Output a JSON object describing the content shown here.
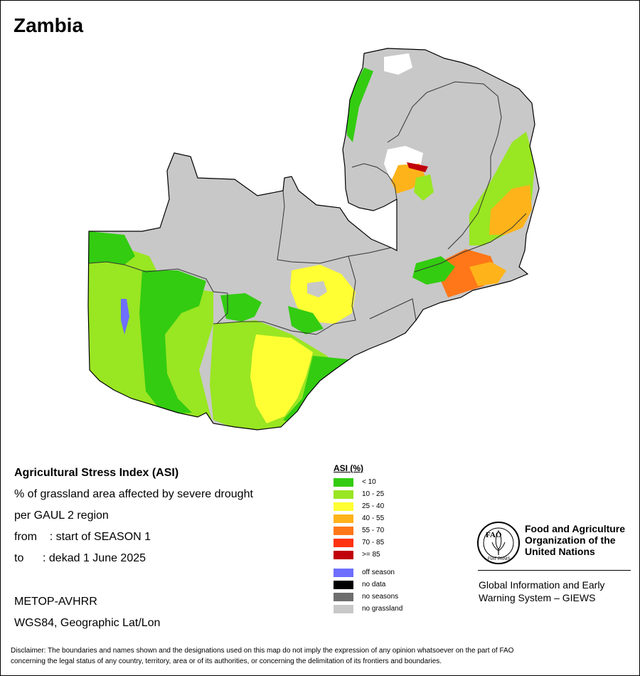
{
  "map": {
    "title": "Zambia",
    "colors": {
      "asi_lt10": "#33cc11",
      "asi_10_25": "#99e622",
      "asi_25_40": "#ffff33",
      "asi_40_55": "#ffb31a",
      "asi_55_70": "#ff7718",
      "asi_70_85": "#ff3311",
      "asi_ge85": "#c0000a",
      "off_season": "#6e6eff",
      "no_data": "#000000",
      "no_seasons": "#6e6e6e",
      "no_grassland": "#c8c8c8",
      "white_area": "#ffffff"
    }
  },
  "info": {
    "title": "Agricultural Stress Index (ASI)",
    "line1": "% of grassland area affected by severe drought",
    "line2": "per GAUL 2 region",
    "line3": "from    : start of SEASON 1",
    "line4": "to      : dekad 1 June 2025",
    "line5": "METOP-AVHRR",
    "line6": "WGS84, Geographic Lat/Lon"
  },
  "legend": {
    "title": "ASI (%)",
    "classes": [
      {
        "label": "< 10",
        "color": "#33cc11"
      },
      {
        "label": "10 - 25",
        "color": "#99e622"
      },
      {
        "label": "25 - 40",
        "color": "#ffff33"
      },
      {
        "label": "40 - 55",
        "color": "#ffb31a"
      },
      {
        "label": "55 - 70",
        "color": "#ff7718"
      },
      {
        "label": "70 - 85",
        "color": "#ff3311"
      },
      {
        "label": ">= 85",
        "color": "#c0000a"
      }
    ],
    "other": [
      {
        "label": "off season",
        "color": "#6e6eff"
      },
      {
        "label": "no data",
        "color": "#000000"
      },
      {
        "label": "no seasons",
        "color": "#6e6e6e"
      },
      {
        "label": "no grassland",
        "color": "#c8c8c8"
      }
    ]
  },
  "logo": {
    "acronym": "FAO",
    "motto": "FIAT PANIS",
    "name_line1": "Food and Agriculture",
    "name_line2": "Organization of the",
    "name_line3": "United Nations",
    "giews_line1": "Global Information and Early",
    "giews_line2": "Warning System – GIEWS"
  },
  "disclaimer": {
    "line1": "Disclaimer: The boundaries and names shown and the designations used on this map do not imply the expression of any opinion whatsoever on the part of FAO",
    "line2": "concerning the legal status of any country, territory, area or of its authorities, or concerning the delimitation of its frontiers and boundaries."
  }
}
